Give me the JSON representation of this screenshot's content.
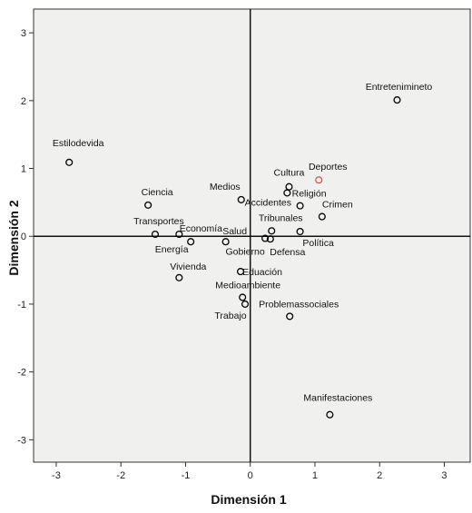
{
  "chart_data": {
    "type": "scatter",
    "xlabel": "Dimensión 1",
    "ylabel": "Dimensión 2",
    "xlim": [
      -3.35,
      3.4
    ],
    "ylim": [
      -3.33,
      3.35
    ],
    "x_ticks": [
      -3,
      -2,
      -1,
      0,
      1,
      2,
      3
    ],
    "y_ticks": [
      3,
      2,
      1,
      0,
      -1,
      -2,
      -3
    ],
    "grid": false,
    "background_color": "#f0f0ef",
    "marker_color": "#000000",
    "highlight_color": "#e05050",
    "points": [
      {
        "label": "Entretenimineto",
        "x": 2.27,
        "y": 2.01
      },
      {
        "label": "Estilodevida",
        "x": -2.8,
        "y": 1.09
      },
      {
        "label": "Deportes",
        "x": 1.06,
        "y": 0.83,
        "highlight": true
      },
      {
        "label": "Cultura",
        "x": 0.6,
        "y": 0.73
      },
      {
        "label": "Accidentes",
        "x": 0.57,
        "y": 0.64
      },
      {
        "label": "Medios",
        "x": -0.14,
        "y": 0.54
      },
      {
        "label": "Ciencia",
        "x": -1.58,
        "y": 0.46
      },
      {
        "label": "Religión",
        "x": 0.77,
        "y": 0.45
      },
      {
        "label": "Crimen",
        "x": 1.11,
        "y": 0.29
      },
      {
        "label": "Tribunales",
        "x": 0.33,
        "y": 0.08
      },
      {
        "label": "Transportes",
        "x": -1.47,
        "y": 0.03
      },
      {
        "label": "Economía",
        "x": -1.1,
        "y": 0.03
      },
      {
        "label": "Política",
        "x": 0.77,
        "y": 0.07
      },
      {
        "label": "Gobierno",
        "x": 0.23,
        "y": -0.03
      },
      {
        "label": "Defensa",
        "x": 0.31,
        "y": -0.04
      },
      {
        "label": "Salud",
        "x": -0.38,
        "y": -0.08
      },
      {
        "label": "Energía",
        "x": -0.92,
        "y": -0.08
      },
      {
        "label": "Eduación",
        "x": -0.15,
        "y": -0.52
      },
      {
        "label": "Vivienda",
        "x": -1.1,
        "y": -0.61
      },
      {
        "label": "Medioambiente",
        "x": -0.12,
        "y": -0.9
      },
      {
        "label": "Trabajo",
        "x": -0.08,
        "y": -1.0
      },
      {
        "label": "Problemassociales",
        "x": 0.61,
        "y": -1.18
      },
      {
        "label": "Manifestaciones",
        "x": 1.23,
        "y": -2.63
      }
    ]
  }
}
